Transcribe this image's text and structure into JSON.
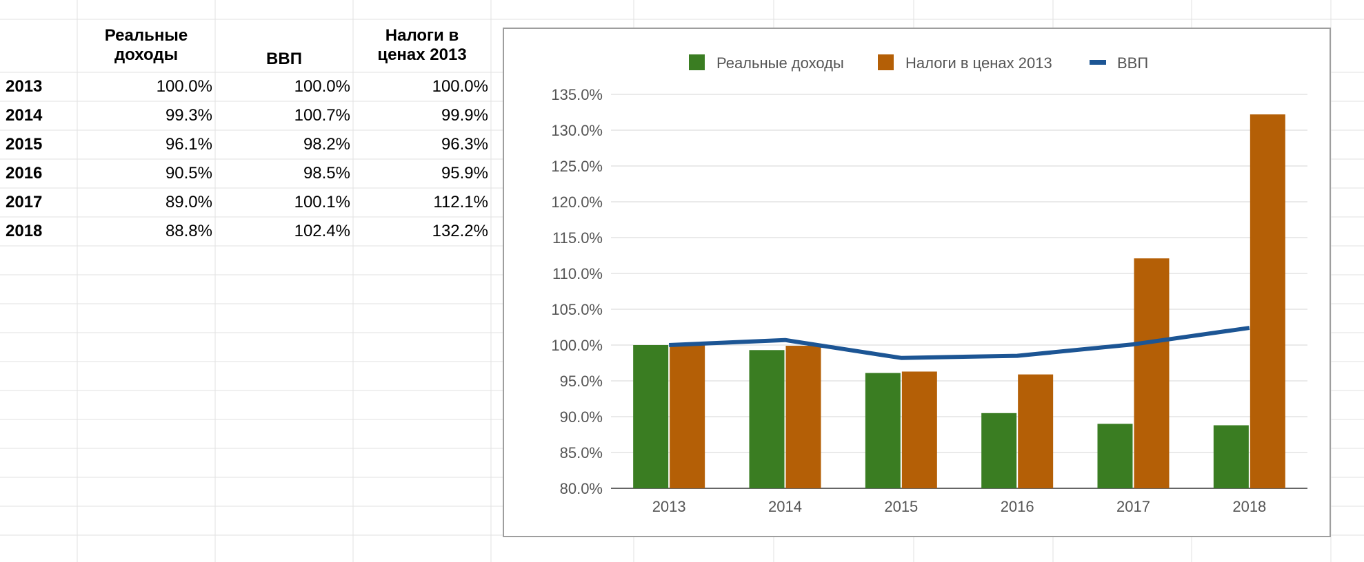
{
  "table": {
    "headers": {
      "col1_line1": "Реальные",
      "col1_line2": "доходы",
      "col2": "ВВП",
      "col3_line1": "Налоги в",
      "col3_line2": "ценах 2013"
    },
    "rows": [
      {
        "year": "2013",
        "income": "100.0%",
        "gdp": "100.0%",
        "taxes": "100.0%"
      },
      {
        "year": "2014",
        "income": "99.3%",
        "gdp": "100.7%",
        "taxes": "99.9%"
      },
      {
        "year": "2015",
        "income": "96.1%",
        "gdp": "98.2%",
        "taxes": "96.3%"
      },
      {
        "year": "2016",
        "income": "90.5%",
        "gdp": "98.5%",
        "taxes": "95.9%"
      },
      {
        "year": "2017",
        "income": "89.0%",
        "gdp": "100.1%",
        "taxes": "112.1%"
      },
      {
        "year": "2018",
        "income": "88.8%",
        "gdp": "102.4%",
        "taxes": "132.2%"
      }
    ]
  },
  "chart_data": {
    "type": "bar",
    "categories": [
      "2013",
      "2014",
      "2015",
      "2016",
      "2017",
      "2018"
    ],
    "series": [
      {
        "name": "Реальные доходы",
        "kind": "bar",
        "color": "#3a7d22",
        "values": [
          100.0,
          99.3,
          96.1,
          90.5,
          89.0,
          88.8
        ]
      },
      {
        "name": "Налоги в ценах 2013",
        "kind": "bar",
        "color": "#b45f06",
        "values": [
          100.0,
          99.9,
          96.3,
          95.9,
          112.1,
          132.2
        ]
      },
      {
        "name": "ВВП",
        "kind": "line",
        "color": "#1c5594",
        "values": [
          100.0,
          100.7,
          98.2,
          98.5,
          100.1,
          102.4
        ]
      }
    ],
    "y_ticks": [
      "80.0%",
      "85.0%",
      "90.0%",
      "95.0%",
      "100.0%",
      "105.0%",
      "110.0%",
      "115.0%",
      "120.0%",
      "125.0%",
      "130.0%",
      "135.0%"
    ],
    "ylim": [
      80,
      135
    ],
    "grid": true,
    "legend_position": "top"
  }
}
